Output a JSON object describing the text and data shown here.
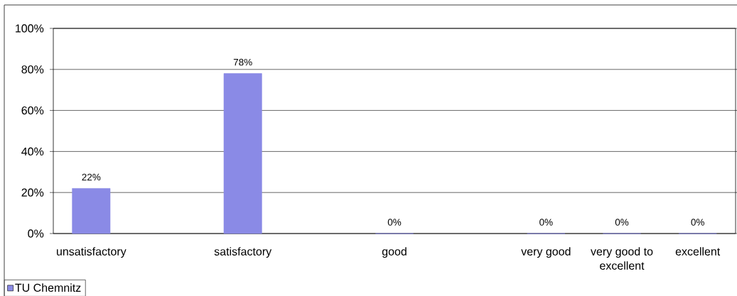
{
  "chart_data": {
    "type": "bar",
    "categories": [
      "unsatisfactory",
      null,
      "satisfactory",
      null,
      "good",
      null,
      "very good",
      "very good to excellent",
      "excellent"
    ],
    "series": [
      {
        "name": "TU Chemnitz",
        "color": "#8a8ae6",
        "values": [
          22,
          null,
          78,
          null,
          0,
          null,
          0,
          0,
          0
        ],
        "value_labels": [
          "22%",
          null,
          "78%",
          null,
          "0%",
          null,
          "0%",
          "0%",
          "0%"
        ]
      }
    ],
    "ylim": [
      0,
      100
    ],
    "yticks": [
      {
        "value": 0,
        "label": "0%"
      },
      {
        "value": 20,
        "label": "20%"
      },
      {
        "value": 40,
        "label": "40%"
      },
      {
        "value": 60,
        "label": "60%"
      },
      {
        "value": 80,
        "label": "80%"
      },
      {
        "value": 100,
        "label": "100%"
      }
    ],
    "grid": "y",
    "legend": "bottom left"
  }
}
